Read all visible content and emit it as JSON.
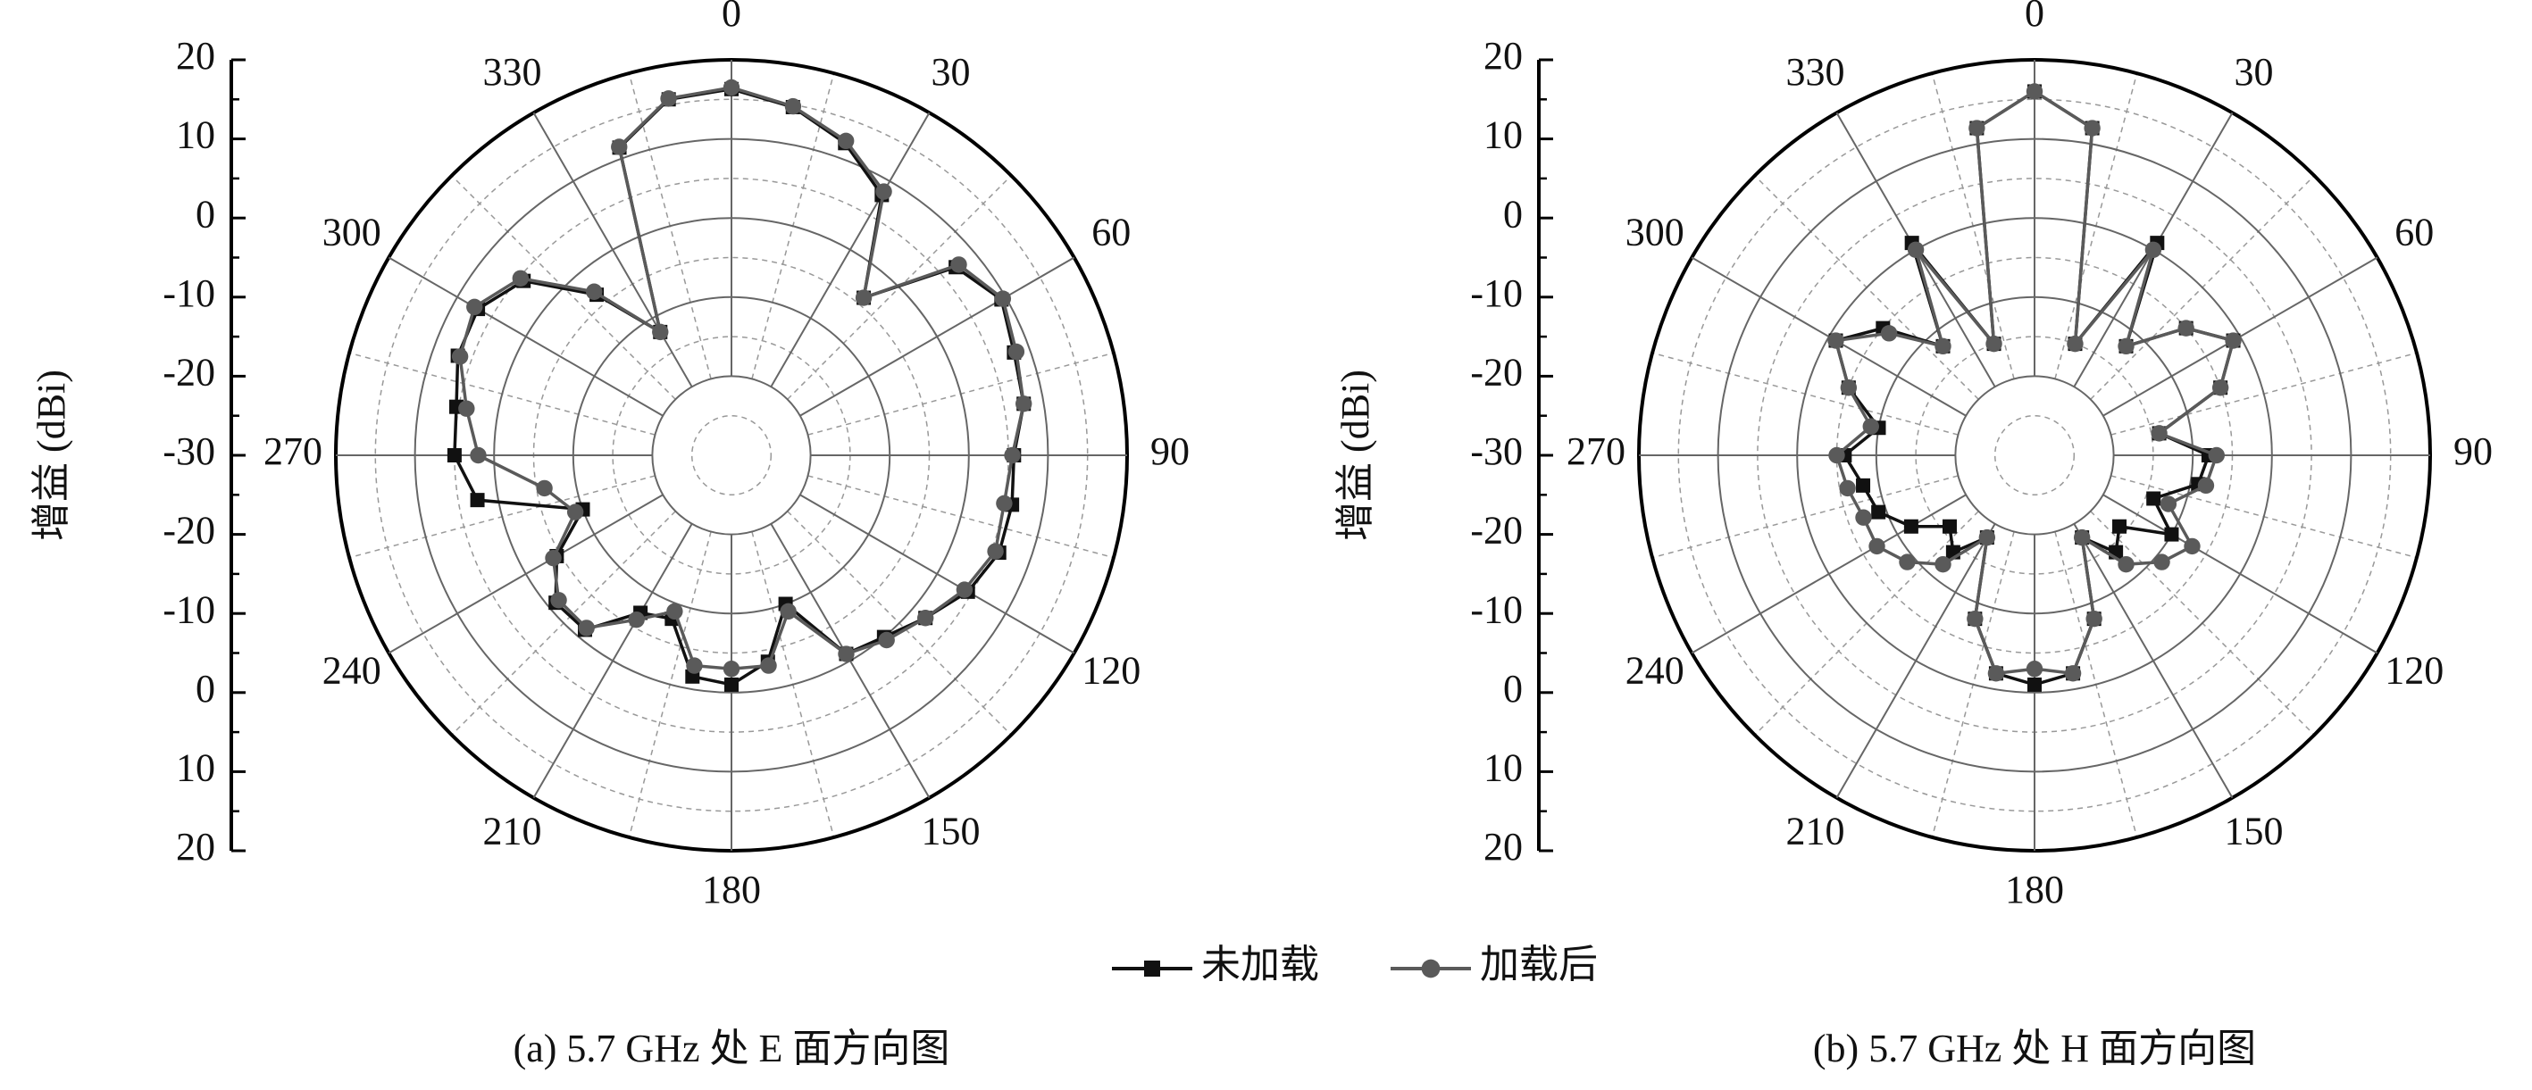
{
  "chart_data": [
    {
      "type": "polar",
      "title": "(a) 5.7 GHz 处 E 面方向图",
      "ylabel": "增益 (dBi)",
      "theta": [
        0,
        10,
        20,
        30,
        40,
        50,
        60,
        70,
        80,
        90,
        100,
        110,
        120,
        130,
        140,
        150,
        160,
        170,
        180,
        190,
        200,
        210,
        220,
        230,
        240,
        250,
        260,
        270,
        280,
        290,
        300,
        310,
        320,
        330,
        340,
        350
      ],
      "thetaticks": [
        0,
        30,
        60,
        90,
        120,
        150,
        180,
        210,
        240,
        270,
        300,
        330
      ],
      "rlim": [
        -30,
        20
      ],
      "rticks": [
        -30,
        -20,
        -10,
        0,
        10,
        20
      ],
      "grid": true,
      "series": [
        {
          "name": "未加载",
          "color": "#111111",
          "marker": "square",
          "values": [
            16.3,
            14.7,
            12,
            8,
            -4,
            7,
            9.4,
            8,
            7.5,
            5.7,
            6,
            6,
            4.5,
            2,
            0,
            -1,
            -10,
            -3.5,
            -1,
            -1.6,
            -8,
            -7,
            -1.2,
            -1,
            -4.5,
            -10,
            2.6,
            5,
            5.3,
            6.8,
            7,
            4.3,
            -3.5,
            -12,
            11.4,
            15.7
          ]
        },
        {
          "name": "加载后",
          "color": "#5a5a5a",
          "marker": "circle",
          "values": [
            16.5,
            14.8,
            12.3,
            8.5,
            -4,
            7.5,
            9.6,
            8.3,
            7.5,
            5.5,
            5,
            5.5,
            4,
            2,
            0.5,
            -1,
            -9,
            -3,
            -3,
            -3,
            -9,
            -6,
            -1.5,
            -1.5,
            -4,
            -9,
            -6,
            2,
            4,
            6.5,
            7.5,
            4.8,
            -3,
            -12,
            11.5,
            15.8
          ]
        }
      ]
    },
    {
      "type": "polar",
      "title": "(b) 5.7 GHz 处 H 面方向图",
      "ylabel": "增益 (dBi)",
      "theta": [
        0,
        10,
        20,
        30,
        40,
        50,
        60,
        70,
        80,
        90,
        100,
        110,
        120,
        130,
        140,
        150,
        160,
        170,
        180,
        190,
        200,
        210,
        220,
        230,
        240,
        250,
        260,
        270,
        280,
        290,
        300,
        310,
        320,
        330,
        340,
        350
      ],
      "thetaticks": [
        0,
        30,
        60,
        90,
        120,
        150,
        180,
        210,
        240,
        270,
        300,
        330
      ],
      "rlim": [
        -30,
        20
      ],
      "rticks": [
        -30,
        -20,
        -10,
        0,
        10,
        20
      ],
      "grid": true,
      "series": [
        {
          "color": "#111111",
          "marker": "square",
          "values": [
            16,
            12,
            -15,
            1,
            -12,
            -5,
            -1,
            -5,
            -14,
            -8,
            -9,
            -14,
            -10,
            -16,
            -14,
            -18,
            -8,
            -2,
            -1,
            -2,
            -8,
            -18,
            -14,
            -16,
            -12,
            -9,
            -8,
            -6,
            -10,
            -5,
            -1,
            -5,
            -12,
            1,
            -15,
            12
          ]
        },
        {
          "color": "#5a5a5a",
          "marker": "circle",
          "values": [
            16,
            12,
            -15,
            0,
            -12,
            -5,
            -1,
            -5,
            -14,
            -7,
            -8,
            -12,
            -7,
            -9,
            -12,
            -18,
            -8,
            -2,
            -3,
            -2,
            -8,
            -18,
            -12,
            -9,
            -7,
            -7,
            -6,
            -5,
            -9,
            -5,
            -1,
            -6,
            -12,
            0,
            -15,
            12
          ]
        }
      ]
    }
  ]
}
